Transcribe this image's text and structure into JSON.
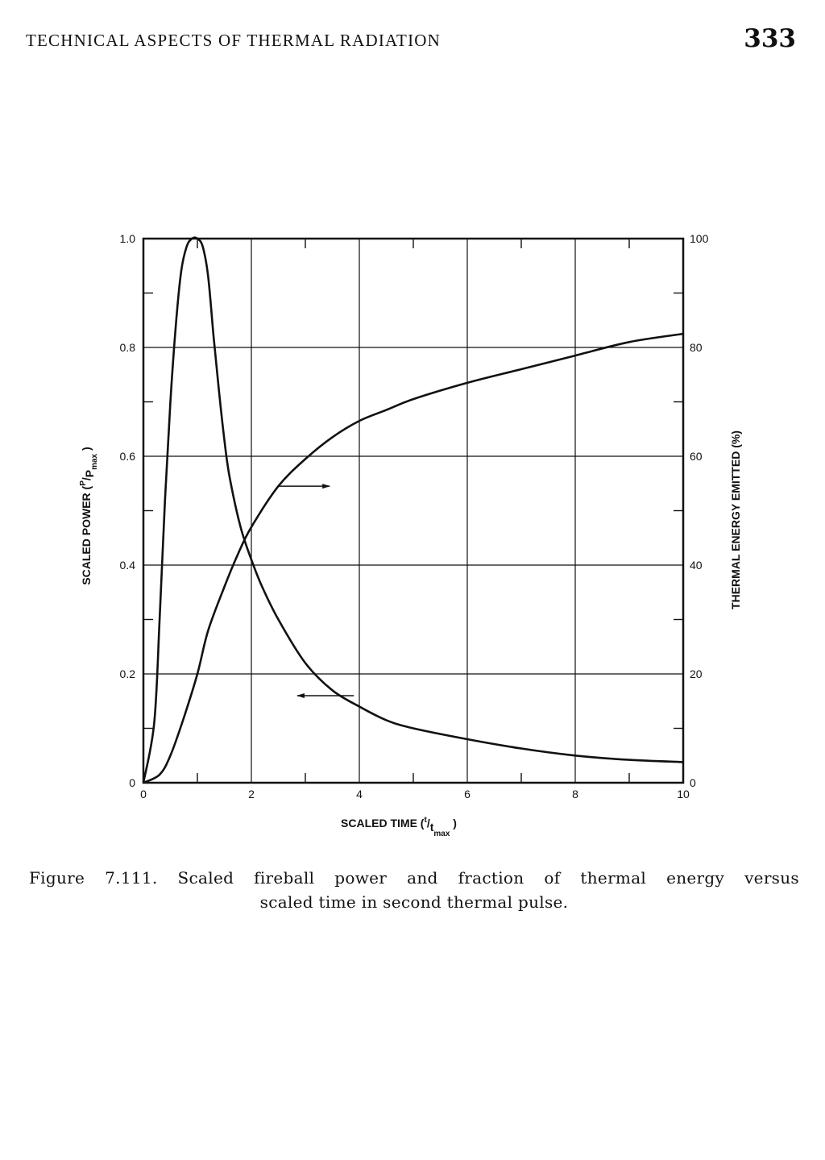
{
  "header": {
    "running_title": "TECHNICAL ASPECTS OF THERMAL RADIATION",
    "page_number": "333"
  },
  "chart_data": {
    "type": "line",
    "xlabel": "SCALED TIME (t/tmax)",
    "ylabel_left": "SCALED POWER (P/Pmax)",
    "ylabel_right": "THERMAL ENERGY EMITTED (%)",
    "xlim": [
      0,
      10
    ],
    "ylim_left": [
      0,
      1.0
    ],
    "ylim_right": [
      0,
      100
    ],
    "x_ticks": [
      "0",
      "2",
      "4",
      "6",
      "8",
      "10"
    ],
    "y_left_ticks": [
      "0",
      "0.2",
      "0.4",
      "0.6",
      "0.8",
      "1.0"
    ],
    "y_right_ticks": [
      "0",
      "20",
      "40",
      "60",
      "80",
      "100"
    ],
    "grid": true,
    "series": [
      {
        "axis": "left",
        "x": [
          0,
          0.2,
          0.3,
          0.4,
          0.5,
          0.6,
          0.7,
          0.8,
          0.9,
          1.0,
          1.1,
          1.2,
          1.3,
          1.4,
          1.5,
          1.6,
          1.8,
          2.0,
          2.2,
          2.5,
          3.0,
          3.5,
          4.0,
          4.5,
          5.0,
          6.0,
          7.0,
          8.0,
          9.0,
          10.0
        ],
        "values": [
          0,
          0.11,
          0.3,
          0.52,
          0.7,
          0.84,
          0.94,
          0.985,
          1.0,
          1.0,
          0.985,
          0.93,
          0.82,
          0.72,
          0.63,
          0.56,
          0.47,
          0.41,
          0.36,
          0.3,
          0.22,
          0.17,
          0.14,
          0.115,
          0.1,
          0.08,
          0.063,
          0.05,
          0.042,
          0.038
        ]
      },
      {
        "axis": "right",
        "x": [
          0,
          0.3,
          0.5,
          0.75,
          1.0,
          1.2,
          1.5,
          1.75,
          2.0,
          2.5,
          3.0,
          3.5,
          4.0,
          4.5,
          5.0,
          6.0,
          7.0,
          8.0,
          9.0,
          10.0
        ],
        "values": [
          0,
          1.5,
          5,
          12,
          20,
          28,
          36,
          42,
          47,
          54.5,
          59.5,
          63.5,
          66.5,
          68.5,
          70.5,
          73.5,
          76,
          78.5,
          81,
          82.5
        ]
      }
    ],
    "annotations": [
      {
        "type": "arrow",
        "points_to": "right axis",
        "x_from": 2.5,
        "x_to": 3.45,
        "y_right": 54.5
      },
      {
        "type": "arrow",
        "points_to": "left axis",
        "x_from": 3.9,
        "x_to": 2.85,
        "y_left": 0.16
      }
    ]
  },
  "caption": {
    "line1": "Figure 7.111.  Scaled fireball power and fraction of thermal energy versus",
    "line2": "scaled time in second thermal pulse."
  }
}
